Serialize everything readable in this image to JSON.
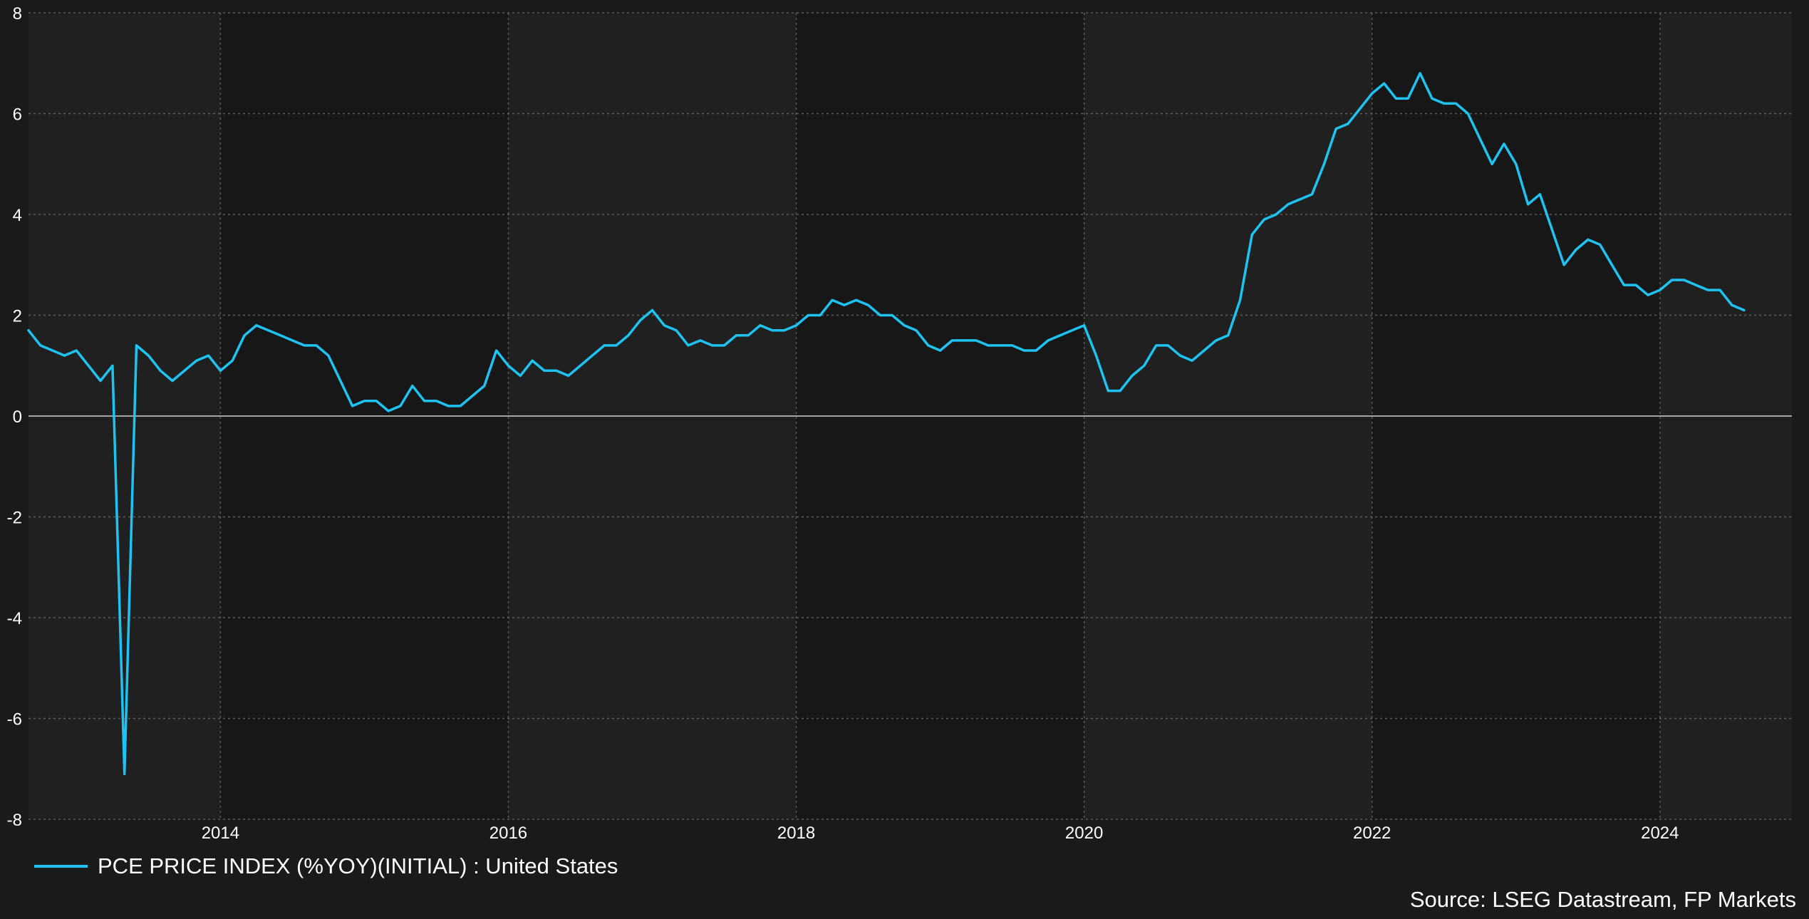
{
  "chart_data": {
    "type": "line",
    "ylim": [
      -8,
      8
    ],
    "yticks": [
      -8,
      -6,
      -4,
      -2,
      0,
      2,
      4,
      6,
      8
    ],
    "xlim": [
      "2012-09",
      "2024-12"
    ],
    "xticks": [
      "2014",
      "2016",
      "2018",
      "2020",
      "2022",
      "2024"
    ],
    "grid": true,
    "legend_position": "bottom-left",
    "series": [
      {
        "name": "PCE PRICE INDEX (%YOY)(INITIAL) : United States",
        "color": "#1ec3f2",
        "points": [
          [
            "2012-09",
            1.7
          ],
          [
            "2012-10",
            1.4
          ],
          [
            "2012-11",
            1.3
          ],
          [
            "2012-12",
            1.2
          ],
          [
            "2013-01",
            1.3
          ],
          [
            "2013-02",
            1.0
          ],
          [
            "2013-03",
            0.7
          ],
          [
            "2013-04",
            1.0
          ],
          [
            "2013-05",
            -7.1
          ],
          [
            "2013-06",
            1.4
          ],
          [
            "2013-07",
            1.2
          ],
          [
            "2013-08",
            0.9
          ],
          [
            "2013-09",
            0.7
          ],
          [
            "2013-10",
            0.9
          ],
          [
            "2013-11",
            1.1
          ],
          [
            "2013-12",
            1.2
          ],
          [
            "2014-01",
            0.9
          ],
          [
            "2014-02",
            1.1
          ],
          [
            "2014-03",
            1.6
          ],
          [
            "2014-04",
            1.8
          ],
          [
            "2014-05",
            1.7
          ],
          [
            "2014-06",
            1.6
          ],
          [
            "2014-07",
            1.5
          ],
          [
            "2014-08",
            1.4
          ],
          [
            "2014-09",
            1.4
          ],
          [
            "2014-10",
            1.2
          ],
          [
            "2014-11",
            0.7
          ],
          [
            "2014-12",
            0.2
          ],
          [
            "2015-01",
            0.3
          ],
          [
            "2015-02",
            0.3
          ],
          [
            "2015-03",
            0.1
          ],
          [
            "2015-04",
            0.2
          ],
          [
            "2015-05",
            0.6
          ],
          [
            "2015-06",
            0.3
          ],
          [
            "2015-07",
            0.3
          ],
          [
            "2015-08",
            0.2
          ],
          [
            "2015-09",
            0.2
          ],
          [
            "2015-10",
            0.4
          ],
          [
            "2015-11",
            0.6
          ],
          [
            "2015-12",
            1.3
          ],
          [
            "2016-01",
            1.0
          ],
          [
            "2016-02",
            0.8
          ],
          [
            "2016-03",
            1.1
          ],
          [
            "2016-04",
            0.9
          ],
          [
            "2016-05",
            0.9
          ],
          [
            "2016-06",
            0.8
          ],
          [
            "2016-07",
            1.0
          ],
          [
            "2016-08",
            1.2
          ],
          [
            "2016-09",
            1.4
          ],
          [
            "2016-10",
            1.4
          ],
          [
            "2016-11",
            1.6
          ],
          [
            "2016-12",
            1.9
          ],
          [
            "2017-01",
            2.1
          ],
          [
            "2017-02",
            1.8
          ],
          [
            "2017-03",
            1.7
          ],
          [
            "2017-04",
            1.4
          ],
          [
            "2017-05",
            1.5
          ],
          [
            "2017-06",
            1.4
          ],
          [
            "2017-07",
            1.4
          ],
          [
            "2017-08",
            1.6
          ],
          [
            "2017-09",
            1.6
          ],
          [
            "2017-10",
            1.8
          ],
          [
            "2017-11",
            1.7
          ],
          [
            "2017-12",
            1.7
          ],
          [
            "2018-01",
            1.8
          ],
          [
            "2018-02",
            2.0
          ],
          [
            "2018-03",
            2.0
          ],
          [
            "2018-04",
            2.3
          ],
          [
            "2018-05",
            2.2
          ],
          [
            "2018-06",
            2.3
          ],
          [
            "2018-07",
            2.2
          ],
          [
            "2018-08",
            2.0
          ],
          [
            "2018-09",
            2.0
          ],
          [
            "2018-10",
            1.8
          ],
          [
            "2018-11",
            1.7
          ],
          [
            "2018-12",
            1.4
          ],
          [
            "2019-01",
            1.3
          ],
          [
            "2019-02",
            1.5
          ],
          [
            "2019-03",
            1.5
          ],
          [
            "2019-04",
            1.5
          ],
          [
            "2019-05",
            1.4
          ],
          [
            "2019-06",
            1.4
          ],
          [
            "2019-07",
            1.4
          ],
          [
            "2019-08",
            1.3
          ],
          [
            "2019-09",
            1.3
          ],
          [
            "2019-10",
            1.5
          ],
          [
            "2019-11",
            1.6
          ],
          [
            "2019-12",
            1.7
          ],
          [
            "2020-01",
            1.8
          ],
          [
            "2020-02",
            1.2
          ],
          [
            "2020-03",
            0.5
          ],
          [
            "2020-04",
            0.5
          ],
          [
            "2020-05",
            0.8
          ],
          [
            "2020-06",
            1.0
          ],
          [
            "2020-07",
            1.4
          ],
          [
            "2020-08",
            1.4
          ],
          [
            "2020-09",
            1.2
          ],
          [
            "2020-10",
            1.1
          ],
          [
            "2020-11",
            1.3
          ],
          [
            "2020-12",
            1.5
          ],
          [
            "2021-01",
            1.6
          ],
          [
            "2021-02",
            2.3
          ],
          [
            "2021-03",
            3.6
          ],
          [
            "2021-04",
            3.9
          ],
          [
            "2021-05",
            4.0
          ],
          [
            "2021-06",
            4.2
          ],
          [
            "2021-07",
            4.3
          ],
          [
            "2021-08",
            4.4
          ],
          [
            "2021-09",
            5.0
          ],
          [
            "2021-10",
            5.7
          ],
          [
            "2021-11",
            5.8
          ],
          [
            "2021-12",
            6.1
          ],
          [
            "2022-01",
            6.4
          ],
          [
            "2022-02",
            6.6
          ],
          [
            "2022-03",
            6.3
          ],
          [
            "2022-04",
            6.3
          ],
          [
            "2022-05",
            6.8
          ],
          [
            "2022-06",
            6.3
          ],
          [
            "2022-07",
            6.2
          ],
          [
            "2022-08",
            6.2
          ],
          [
            "2022-09",
            6.0
          ],
          [
            "2022-10",
            5.5
          ],
          [
            "2022-11",
            5.0
          ],
          [
            "2022-12",
            5.4
          ],
          [
            "2023-01",
            5.0
          ],
          [
            "2023-02",
            4.2
          ],
          [
            "2023-03",
            4.4
          ],
          [
            "2023-04",
            3.7
          ],
          [
            "2023-05",
            3.0
          ],
          [
            "2023-06",
            3.3
          ],
          [
            "2023-07",
            3.5
          ],
          [
            "2023-08",
            3.4
          ],
          [
            "2023-09",
            3.0
          ],
          [
            "2023-10",
            2.6
          ],
          [
            "2023-11",
            2.6
          ],
          [
            "2023-12",
            2.4
          ],
          [
            "2024-01",
            2.5
          ],
          [
            "2024-02",
            2.7
          ],
          [
            "2024-03",
            2.7
          ],
          [
            "2024-04",
            2.6
          ],
          [
            "2024-05",
            2.5
          ],
          [
            "2024-06",
            2.5
          ],
          [
            "2024-07",
            2.2
          ],
          [
            "2024-08",
            2.1
          ]
        ]
      }
    ]
  },
  "source_text": "Source: LSEG Datastream, FP Markets",
  "colors": {
    "background": "#1a1a1a",
    "band_light": "#202020",
    "band_dark": "#171717",
    "line": "#1ec3f2",
    "grid": "#5e5e5e",
    "zero_line": "#d0d0d0",
    "text": "#ffffff"
  }
}
